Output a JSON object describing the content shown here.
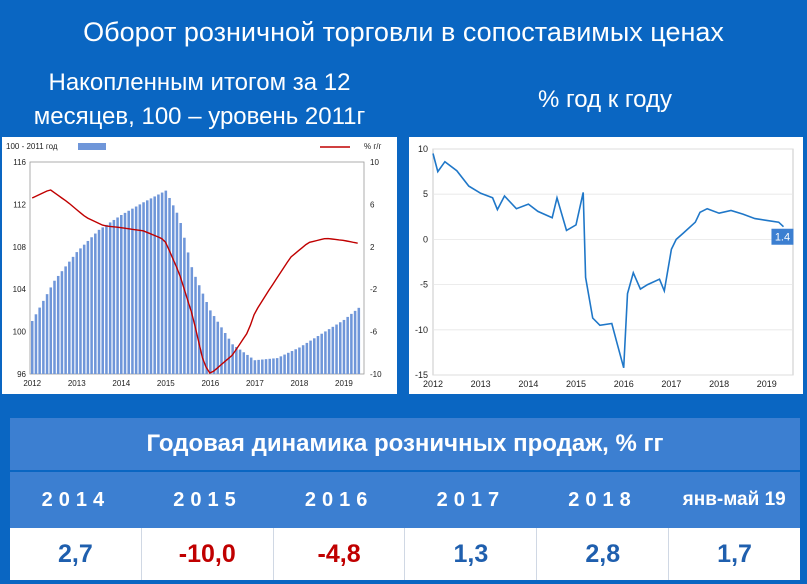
{
  "title": "Оборот розничной торговли в сопоставимых ценах",
  "subtitle_left": "Накопленным итогом за 12 месяцев, 100 – уровень 2011г",
  "subtitle_right": "% год к году",
  "colors": {
    "background": "#0a66c2",
    "bars": "#6f96d9",
    "red_line": "#c00000",
    "blue_line": "#1f77c8",
    "positive": "#1f5fae",
    "negative": "#c00000"
  },
  "chart_data": [
    {
      "type": "bar",
      "legend": [
        "100 - 2011 год",
        "% г/г"
      ],
      "x_ticks": [
        "2012",
        "2013",
        "2014",
        "2015",
        "2016",
        "2017",
        "2018",
        "2019"
      ],
      "y_left_ticks": [
        "96",
        "100",
        "104",
        "108",
        "112",
        "116"
      ],
      "y_right_ticks": [
        "-10",
        "-6",
        "-2",
        "2",
        "6",
        "10"
      ],
      "ylim_left": [
        96,
        116
      ],
      "ylim_right": [
        -10,
        10
      ],
      "series": [
        {
          "name": "100 - 2011 год",
          "type": "bar",
          "axis": "left",
          "points": [
            [
              2012.0,
              101.0
            ],
            [
              2012.5,
              104.8
            ],
            [
              2013.0,
              107.5
            ],
            [
              2013.5,
              109.6
            ],
            [
              2014.0,
              111.0
            ],
            [
              2014.5,
              112.2
            ],
            [
              2015.0,
              113.3
            ],
            [
              2015.3,
              110.8
            ],
            [
              2015.6,
              105.8
            ],
            [
              2016.0,
              102.0
            ],
            [
              2016.5,
              98.8
            ],
            [
              2017.0,
              97.3
            ],
            [
              2017.5,
              97.5
            ],
            [
              2018.0,
              98.5
            ],
            [
              2018.5,
              99.8
            ],
            [
              2019.0,
              101.1
            ],
            [
              2019.35,
              102.3
            ]
          ]
        },
        {
          "name": "% г/г",
          "type": "line",
          "axis": "right",
          "points": [
            [
              2012.0,
              6.6
            ],
            [
              2012.4,
              7.4
            ],
            [
              2012.8,
              6.2
            ],
            [
              2013.2,
              4.8
            ],
            [
              2013.6,
              4.0
            ],
            [
              2014.0,
              3.8
            ],
            [
              2014.5,
              3.5
            ],
            [
              2014.9,
              2.8
            ],
            [
              2015.0,
              2.4
            ],
            [
              2015.3,
              -0.5
            ],
            [
              2015.6,
              -4.5
            ],
            [
              2015.85,
              -9.0
            ],
            [
              2016.0,
              -10.0
            ],
            [
              2016.5,
              -8.2
            ],
            [
              2016.85,
              -6.0
            ],
            [
              2017.0,
              -4.2
            ],
            [
              2017.3,
              -2.2
            ],
            [
              2017.8,
              1.0
            ],
            [
              2018.2,
              2.4
            ],
            [
              2018.6,
              2.8
            ],
            [
              2019.0,
              2.6
            ],
            [
              2019.35,
              2.3
            ]
          ]
        }
      ]
    },
    {
      "type": "line",
      "x_ticks": [
        "2012",
        "2013",
        "2014",
        "2015",
        "2016",
        "2017",
        "2018",
        "2019"
      ],
      "y_ticks": [
        "-15",
        "-10",
        "-5",
        "0",
        "5",
        "10"
      ],
      "ylim": [
        -15,
        10
      ],
      "annotation": "1.4",
      "series": [
        {
          "values": [
            [
              2012.0,
              9.5
            ],
            [
              2012.1,
              7.5
            ],
            [
              2012.25,
              8.6
            ],
            [
              2012.5,
              7.6
            ],
            [
              2012.75,
              5.9
            ],
            [
              2013.0,
              5.1
            ],
            [
              2013.25,
              4.6
            ],
            [
              2013.35,
              3.3
            ],
            [
              2013.5,
              4.8
            ],
            [
              2013.75,
              3.4
            ],
            [
              2014.0,
              3.9
            ],
            [
              2014.2,
              3.1
            ],
            [
              2014.5,
              2.4
            ],
            [
              2014.6,
              4.6
            ],
            [
              2014.8,
              1.0
            ],
            [
              2015.0,
              1.6
            ],
            [
              2015.15,
              5.2
            ],
            [
              2015.2,
              -4.2
            ],
            [
              2015.35,
              -8.7
            ],
            [
              2015.5,
              -9.5
            ],
            [
              2015.75,
              -9.3
            ],
            [
              2015.85,
              -11.3
            ],
            [
              2016.0,
              -14.2
            ],
            [
              2016.08,
              -6.0
            ],
            [
              2016.2,
              -3.7
            ],
            [
              2016.35,
              -5.5
            ],
            [
              2016.5,
              -5.0
            ],
            [
              2016.75,
              -4.4
            ],
            [
              2016.85,
              -5.7
            ],
            [
              2017.0,
              -1.1
            ],
            [
              2017.1,
              0.0
            ],
            [
              2017.25,
              0.7
            ],
            [
              2017.5,
              1.9
            ],
            [
              2017.6,
              3.0
            ],
            [
              2017.75,
              3.4
            ],
            [
              2018.0,
              2.9
            ],
            [
              2018.25,
              3.2
            ],
            [
              2018.5,
              2.8
            ],
            [
              2018.75,
              2.3
            ],
            [
              2019.0,
              2.1
            ],
            [
              2019.25,
              1.9
            ],
            [
              2019.35,
              1.4
            ]
          ]
        }
      ]
    }
  ],
  "table": {
    "title": "Годовая динамика розничных продаж, % гг",
    "years": [
      "2014",
      "2015",
      "2016",
      "2017",
      "2018",
      "янв-май 19"
    ],
    "values": [
      "2,7",
      "-10,0",
      "-4,8",
      "1,3",
      "2,8",
      "1,7"
    ]
  }
}
